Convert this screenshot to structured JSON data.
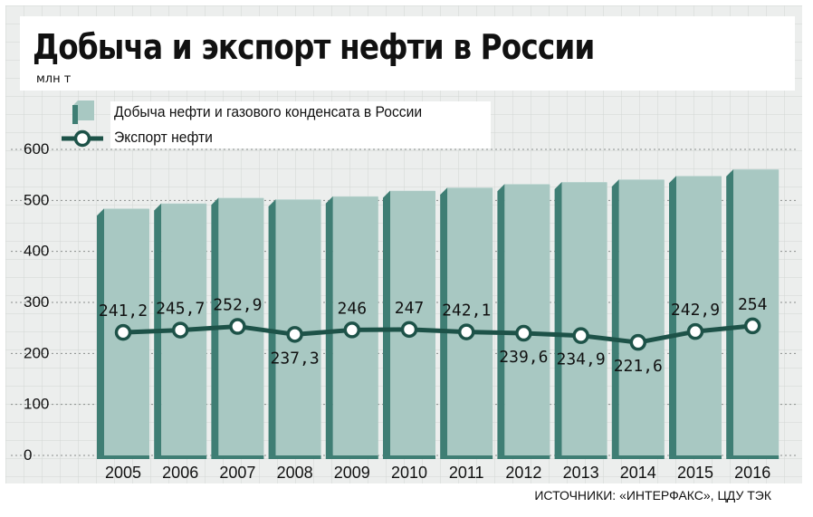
{
  "title": "Добыча и экспорт нефти в России",
  "unit": "млн т",
  "legend": {
    "production": "Добыча нефти и газового конденсата в России",
    "export": "Экспорт нефти"
  },
  "source": "ИСТОЧНИКИ: «ИНТЕРФАКС», ЦДУ ТЭК",
  "colors": {
    "bar_face": "#a8c8c2",
    "bar_top": "#c9dedb",
    "bar_side": "#3f7e74",
    "line": "#1d5248",
    "grid_bg": "#eceeed",
    "grid_line": "#d2d6d4"
  },
  "chart_data": {
    "type": "bar",
    "categories": [
      "2005",
      "2006",
      "2007",
      "2008",
      "2009",
      "2010",
      "2011",
      "2012",
      "2013",
      "2014",
      "2015",
      "2016"
    ],
    "ylim": [
      0,
      600
    ],
    "yticks": [
      0,
      100,
      200,
      300,
      400,
      500,
      600
    ],
    "grid": true,
    "series": [
      {
        "name": "Добыча нефти и газового конденсата в России",
        "type": "bar",
        "values": [
          470,
          480,
          491,
          488,
          494,
          505,
          511,
          518,
          522,
          527,
          534,
          547
        ]
      },
      {
        "name": "Экспорт нефти",
        "type": "line",
        "values": [
          241.2,
          245.7,
          252.9,
          237.3,
          246,
          247,
          242.1,
          239.6,
          234.9,
          221.6,
          242.9,
          254
        ],
        "labels": [
          "241,2",
          "245,7",
          "252,9",
          "237,3",
          "246",
          "247",
          "242,1",
          "239,6",
          "234,9",
          "221,6",
          "242,9",
          "254"
        ]
      }
    ]
  }
}
